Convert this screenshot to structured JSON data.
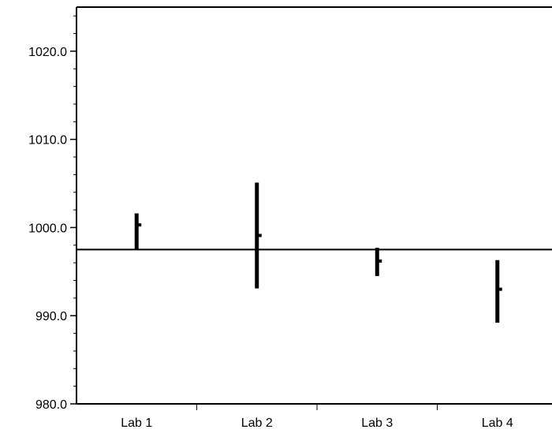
{
  "chart_data": {
    "type": "range",
    "title": "",
    "xlabel": "",
    "ylabel": "",
    "categories": [
      "Lab 1",
      "Lab 2",
      "Lab 3",
      "Lab 4"
    ],
    "ylim": [
      980,
      1025
    ],
    "y_ticks": [
      980,
      990,
      1000,
      1010,
      1020
    ],
    "y_tick_labels": [
      "980.0",
      "990.0",
      "1000.0",
      "1010.0",
      "1020.0"
    ],
    "series": [
      {
        "points": [
          {
            "category": "Lab 1",
            "low": 997.5,
            "high": 1001.6,
            "value": 1000.3
          },
          {
            "category": "Lab 2",
            "low": 993.1,
            "high": 1005.1,
            "value": 999.1
          },
          {
            "category": "Lab 3",
            "low": 994.5,
            "high": 997.7,
            "value": 996.2
          },
          {
            "category": "Lab 4",
            "low": 989.2,
            "high": 996.3,
            "value": 993.0
          }
        ]
      }
    ],
    "reference_line": 997.5,
    "grid": false,
    "colors": {
      "marks": "#000000",
      "axis": "#000000",
      "background": "#ffffff"
    }
  }
}
